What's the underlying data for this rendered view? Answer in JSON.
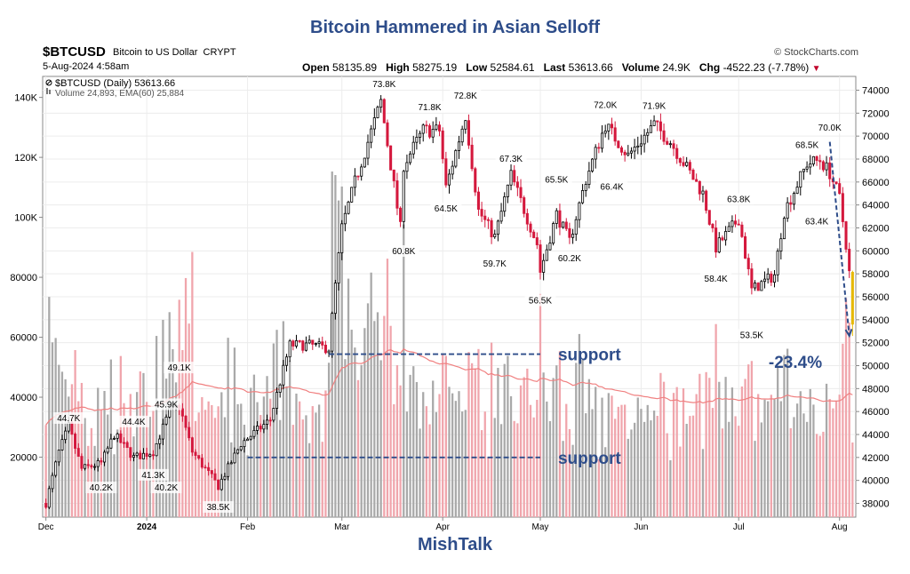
{
  "headline": "Bitcoin Hammered in Asian Selloff",
  "footer": "MishTalk",
  "header": {
    "symbol": "$BTCUSD",
    "name": "Bitcoin to US Dollar",
    "exchange": "CRYPT",
    "credit": "© StockCharts.com",
    "date": "5-Aug-2024 4:58am",
    "open_label": "Open",
    "open": "58135.89",
    "high_label": "High",
    "high": "58275.19",
    "low_label": "Low",
    "low": "52584.61",
    "last_label": "Last",
    "last": "53613.66",
    "volume_label": "Volume",
    "volume": "24.9K",
    "chg_label": "Chg",
    "chg": "-4522.23 (-7.78%)"
  },
  "chart_data": {
    "type": "candlestick",
    "legend": [
      {
        "text": "$BTCUSD (Daily) 53613.66"
      },
      {
        "text": "Volume 24,893, EMA(60) 25,884"
      }
    ],
    "x_ticks": [
      {
        "label": "Dec",
        "date": "2023-12-01"
      },
      {
        "label": "2024",
        "date": "2024-01-01",
        "bold": true
      },
      {
        "label": "Feb",
        "date": "2024-02-01"
      },
      {
        "label": "Mar",
        "date": "2024-03-01"
      },
      {
        "label": "Apr",
        "date": "2024-04-01"
      },
      {
        "label": "May",
        "date": "2024-05-01"
      },
      {
        "label": "Jun",
        "date": "2024-06-01"
      },
      {
        "label": "Jul",
        "date": "2024-07-01"
      },
      {
        "label": "Aug",
        "date": "2024-08-01"
      }
    ],
    "price_axis": {
      "ticks": [
        38000,
        40000,
        42000,
        44000,
        46000,
        48000,
        50000,
        52000,
        54000,
        56000,
        58000,
        60000,
        62000,
        64000,
        66000,
        68000,
        70000,
        72000,
        74000
      ],
      "range": [
        36800,
        75200
      ],
      "side": "right"
    },
    "volume_axis": {
      "ticks": [
        20000,
        40000,
        60000,
        80000,
        100000,
        120000,
        140000
      ],
      "labels": [
        "20000",
        "40000",
        "60000",
        "80000",
        "100K",
        "120K",
        "140K"
      ],
      "range": [
        0,
        147000
      ],
      "side": "left"
    },
    "price_anchors": [
      {
        "date": "2023-12-01",
        "close": 38000
      },
      {
        "date": "2023-12-05",
        "close": 42500
      },
      {
        "date": "2023-12-08",
        "close": 44700
      },
      {
        "date": "2023-12-12",
        "close": 41000
      },
      {
        "date": "2023-12-18",
        "close": 41500
      },
      {
        "date": "2023-12-22",
        "close": 44000
      },
      {
        "date": "2023-12-28",
        "close": 42000
      },
      {
        "date": "2024-01-03",
        "close": 42500
      },
      {
        "date": "2024-01-08",
        "close": 46000
      },
      {
        "date": "2024-01-11",
        "close": 46500
      },
      {
        "date": "2024-01-15",
        "close": 42500
      },
      {
        "date": "2024-01-23",
        "close": 39500
      },
      {
        "date": "2024-01-30",
        "close": 43200
      },
      {
        "date": "2024-02-08",
        "close": 45300
      },
      {
        "date": "2024-02-10",
        "close": 47500
      },
      {
        "date": "2024-02-14",
        "close": 51800
      },
      {
        "date": "2024-02-20",
        "close": 51800
      },
      {
        "date": "2024-02-26",
        "close": 51500
      },
      {
        "date": "2024-02-28",
        "close": 57000
      },
      {
        "date": "2024-03-01",
        "close": 62000
      },
      {
        "date": "2024-03-05",
        "close": 66000
      },
      {
        "date": "2024-03-13",
        "close": 73000
      },
      {
        "date": "2024-03-19",
        "close": 62000
      },
      {
        "date": "2024-03-20",
        "close": 67500
      },
      {
        "date": "2024-03-26",
        "close": 70500
      },
      {
        "date": "2024-03-31",
        "close": 70500
      },
      {
        "date": "2024-04-02",
        "close": 65500
      },
      {
        "date": "2024-04-08",
        "close": 71800
      },
      {
        "date": "2024-04-12",
        "close": 63500
      },
      {
        "date": "2024-04-17",
        "close": 61200
      },
      {
        "date": "2024-04-22",
        "close": 66600
      },
      {
        "date": "2024-04-30",
        "close": 60600
      },
      {
        "date": "2024-05-01",
        "close": 58200
      },
      {
        "date": "2024-05-06",
        "close": 63200
      },
      {
        "date": "2024-05-10",
        "close": 60800
      },
      {
        "date": "2024-05-15",
        "close": 66200
      },
      {
        "date": "2024-05-21",
        "close": 71000
      },
      {
        "date": "2024-05-28",
        "close": 68300
      },
      {
        "date": "2024-06-05",
        "close": 71000
      },
      {
        "date": "2024-06-10",
        "close": 69500
      },
      {
        "date": "2024-06-20",
        "close": 65000
      },
      {
        "date": "2024-06-24",
        "close": 60300
      },
      {
        "date": "2024-07-01",
        "close": 62800
      },
      {
        "date": "2024-07-05",
        "close": 56600
      },
      {
        "date": "2024-07-12",
        "close": 57900
      },
      {
        "date": "2024-07-15",
        "close": 63400
      },
      {
        "date": "2024-07-22",
        "close": 67600
      },
      {
        "date": "2024-07-26",
        "close": 67900
      },
      {
        "date": "2024-07-29",
        "close": 66800
      },
      {
        "date": "2024-08-01",
        "close": 64600
      },
      {
        "date": "2024-08-03",
        "close": 60600
      },
      {
        "date": "2024-08-04",
        "close": 58100
      },
      {
        "date": "2024-08-05",
        "close": 53614
      }
    ],
    "annotations": [
      {
        "label": "44.7K",
        "date": "2023-12-08",
        "value": 44700,
        "pos": "above"
      },
      {
        "label": "40.2K",
        "date": "2023-12-18",
        "value": 40200,
        "pos": "below"
      },
      {
        "label": "44.4K",
        "date": "2023-12-28",
        "value": 44400,
        "pos": "above"
      },
      {
        "label": "41.3K",
        "date": "2024-01-03",
        "value": 41300,
        "pos": "below"
      },
      {
        "label": "45.9K",
        "date": "2024-01-07",
        "value": 45900,
        "pos": "above"
      },
      {
        "label": "40.2K",
        "date": "2024-01-07",
        "value": 40200,
        "pos": "below"
      },
      {
        "label": "49.1K",
        "date": "2024-01-11",
        "value": 49100,
        "pos": "above"
      },
      {
        "label": "38.5K",
        "date": "2024-01-23",
        "value": 38500,
        "pos": "below"
      },
      {
        "label": "73.8K",
        "date": "2024-03-14",
        "value": 73800,
        "pos": "above"
      },
      {
        "label": "60.8K",
        "date": "2024-03-20",
        "value": 60800,
        "pos": "below"
      },
      {
        "label": "71.8K",
        "date": "2024-03-28",
        "value": 71800,
        "pos": "above"
      },
      {
        "label": "72.8K",
        "date": "2024-04-08",
        "value": 72800,
        "pos": "above"
      },
      {
        "label": "64.5K",
        "date": "2024-04-02",
        "value": 64500,
        "pos": "below"
      },
      {
        "label": "67.3K",
        "date": "2024-04-22",
        "value": 67300,
        "pos": "above"
      },
      {
        "label": "59.7K",
        "date": "2024-04-17",
        "value": 59700,
        "pos": "below"
      },
      {
        "label": "65.5K",
        "date": "2024-05-06",
        "value": 65500,
        "pos": "above"
      },
      {
        "label": "56.5K",
        "date": "2024-05-01",
        "value": 56500,
        "pos": "below"
      },
      {
        "label": "60.2K",
        "date": "2024-05-10",
        "value": 60200,
        "pos": "below"
      },
      {
        "label": "72.0K",
        "date": "2024-05-21",
        "value": 72000,
        "pos": "above"
      },
      {
        "label": "66.4K",
        "date": "2024-05-23",
        "value": 66400,
        "pos": "below"
      },
      {
        "label": "71.9K",
        "date": "2024-06-05",
        "value": 71900,
        "pos": "above"
      },
      {
        "label": "63.8K",
        "date": "2024-07-01",
        "value": 63800,
        "pos": "above"
      },
      {
        "label": "58.4K",
        "date": "2024-06-24",
        "value": 58400,
        "pos": "below"
      },
      {
        "label": "53.5K",
        "date": "2024-07-05",
        "value": 53500,
        "pos": "below"
      },
      {
        "label": "68.5K",
        "date": "2024-07-22",
        "value": 68500,
        "pos": "above"
      },
      {
        "label": "63.4K",
        "date": "2024-07-25",
        "value": 63400,
        "pos": "below"
      },
      {
        "label": "70.0K",
        "date": "2024-07-29",
        "value": 70000,
        "pos": "above"
      }
    ],
    "support_lines": [
      {
        "label": "support",
        "value": 51000,
        "from": "2024-02-26",
        "to": "2024-05-01"
      },
      {
        "label": "support",
        "value": 42000,
        "from": "2024-02-01",
        "to": "2024-05-01"
      }
    ],
    "drop_annotation": {
      "label": "-23.4%",
      "from_date": "2024-07-29",
      "from_value": 69500,
      "to_date": "2024-08-04",
      "to_value": 52600
    },
    "colors": {
      "up": "#000000",
      "down": "#d4183d",
      "vol_up": "#a9a9a9",
      "vol_down": "#f0a5ac",
      "ema": "#f08080",
      "ann": "#2e4d8a",
      "last_bar": "#e6b800"
    }
  }
}
